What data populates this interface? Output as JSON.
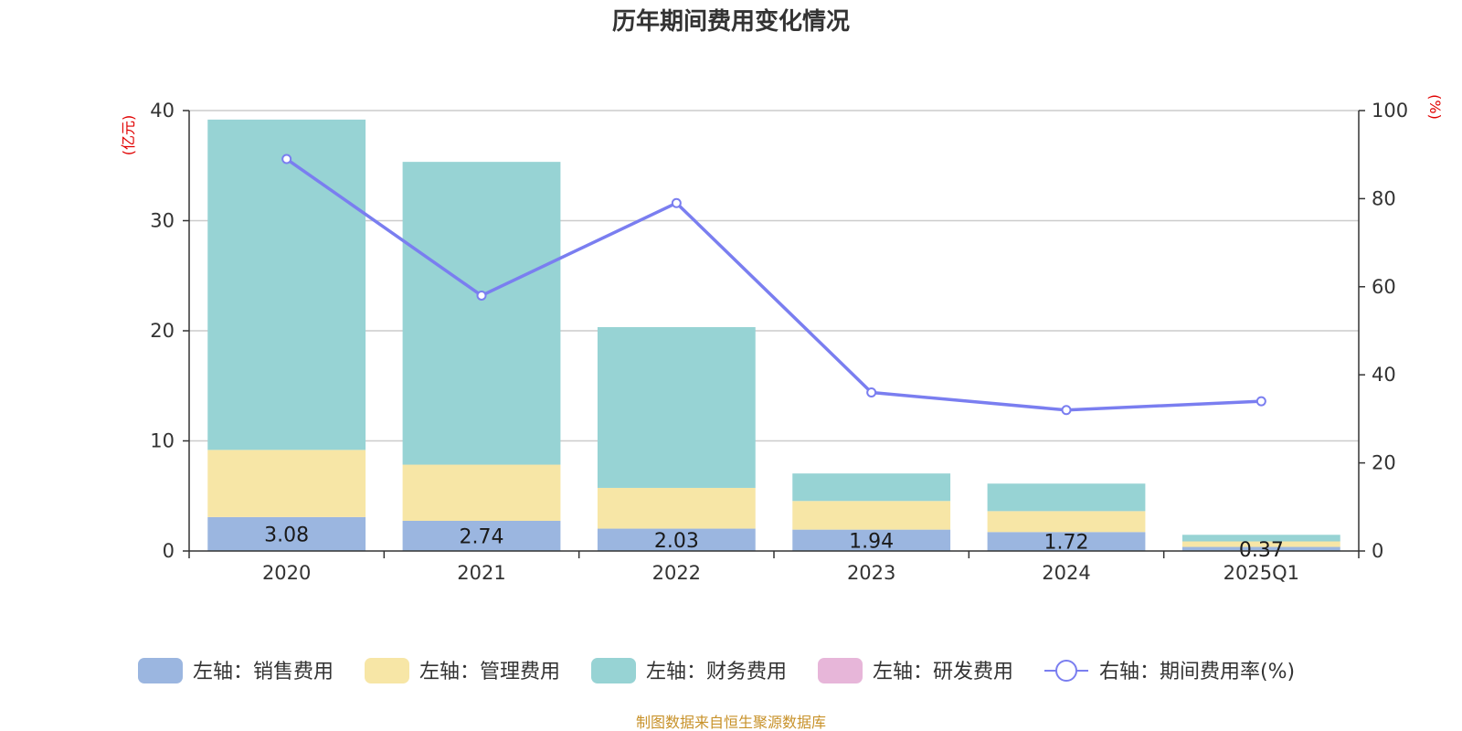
{
  "chart_data": {
    "type": "bar",
    "title": "历年期间费用变化情况",
    "y_left_unit": "(亿元)",
    "y_right_unit": "(%)",
    "categories": [
      "2020",
      "2021",
      "2022",
      "2023",
      "2024",
      "2025Q1"
    ],
    "y_left": {
      "min": 0,
      "max": 40,
      "ticks": [
        "0",
        "10",
        "20",
        "30",
        "40"
      ]
    },
    "y_right": {
      "min": 0,
      "max": 100,
      "ticks": [
        "0",
        "20",
        "40",
        "60",
        "80",
        "100"
      ]
    },
    "stacked": true,
    "grid": true,
    "legend_position": "bottom",
    "series": [
      {
        "name": "左轴：销售费用",
        "axis": "left",
        "color": "#9bb6e0",
        "values": [
          3.08,
          2.74,
          2.03,
          1.94,
          1.72,
          0.37
        ],
        "labels": [
          "3.08",
          "2.74",
          "2.03",
          "1.94",
          "1.72",
          "0.37"
        ]
      },
      {
        "name": "左轴：管理费用",
        "axis": "left",
        "color": "#f7e6a6",
        "values": [
          6.1,
          5.1,
          3.7,
          2.6,
          1.9,
          0.5
        ]
      },
      {
        "name": "左轴：财务费用",
        "axis": "left",
        "color": "#97d3d4",
        "values": [
          30.0,
          27.5,
          14.6,
          2.5,
          2.5,
          0.6
        ]
      },
      {
        "name": "左轴：研发费用",
        "axis": "left",
        "color": "#e7b6d9",
        "values": [
          0,
          0,
          0,
          0,
          0,
          0
        ]
      },
      {
        "name": "右轴：期间费用率(%)",
        "axis": "right",
        "type": "line",
        "color": "#7a7ef0",
        "values": [
          89,
          58,
          79,
          36,
          32,
          34
        ]
      }
    ]
  },
  "source": "制图数据来自恒生聚源数据库"
}
